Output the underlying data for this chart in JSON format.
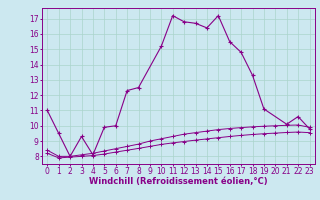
{
  "xlabel": "Windchill (Refroidissement éolien,°C)",
  "background_color": "#cce8f0",
  "grid_color": "#aad4cc",
  "line_color": "#880088",
  "xlim": [
    -0.5,
    23.5
  ],
  "ylim": [
    7.5,
    17.7
  ],
  "xticks": [
    0,
    1,
    2,
    3,
    4,
    5,
    6,
    7,
    8,
    9,
    10,
    11,
    12,
    13,
    14,
    15,
    16,
    17,
    18,
    19,
    20,
    21,
    22,
    23
  ],
  "yticks": [
    8,
    9,
    10,
    11,
    12,
    13,
    14,
    15,
    16,
    17
  ],
  "series0_x": [
    0,
    1,
    2,
    3,
    4,
    5,
    6,
    7,
    8,
    10,
    11,
    12,
    13,
    14,
    15,
    16,
    17,
    18,
    19,
    21,
    22,
    23
  ],
  "series0_y": [
    11.0,
    9.5,
    8.0,
    9.3,
    8.1,
    9.9,
    10.0,
    12.3,
    12.5,
    15.2,
    17.2,
    16.8,
    16.7,
    16.4,
    17.2,
    15.5,
    14.8,
    13.3,
    11.1,
    10.1,
    10.6,
    9.8
  ],
  "series1_x": [
    0,
    1,
    2,
    3,
    4,
    5,
    6,
    7,
    8,
    9,
    10,
    11,
    12,
    13,
    14,
    15,
    16,
    17,
    18,
    19,
    20,
    21,
    22,
    23
  ],
  "series1_y": [
    8.4,
    8.0,
    8.0,
    8.1,
    8.2,
    8.35,
    8.5,
    8.65,
    8.8,
    9.0,
    9.15,
    9.3,
    9.45,
    9.55,
    9.65,
    9.75,
    9.82,
    9.88,
    9.93,
    9.97,
    10.0,
    10.03,
    10.05,
    9.9
  ],
  "series2_x": [
    0,
    1,
    2,
    3,
    4,
    5,
    6,
    7,
    8,
    9,
    10,
    11,
    12,
    13,
    14,
    15,
    16,
    17,
    18,
    19,
    20,
    21,
    22,
    23
  ],
  "series2_y": [
    8.2,
    7.9,
    7.95,
    8.0,
    8.05,
    8.15,
    8.28,
    8.4,
    8.52,
    8.65,
    8.78,
    8.88,
    8.97,
    9.06,
    9.14,
    9.22,
    9.3,
    9.37,
    9.43,
    9.48,
    9.52,
    9.56,
    9.59,
    9.55
  ],
  "tick_fontsize": 5.5,
  "xlabel_fontsize": 6.0
}
